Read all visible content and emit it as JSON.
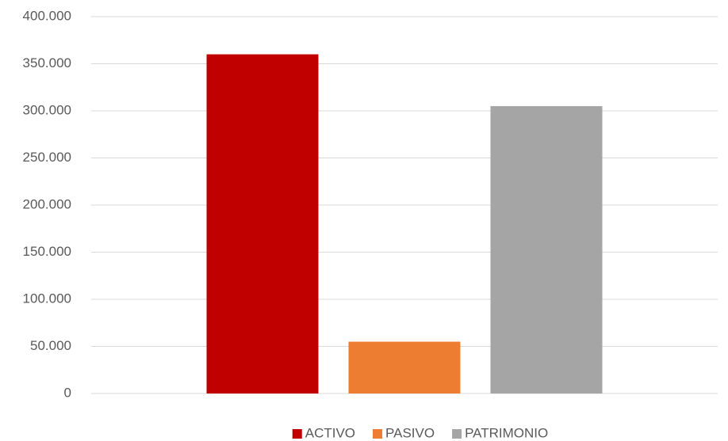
{
  "chart_data": {
    "type": "bar",
    "categories": [
      null
    ],
    "series": [
      {
        "name": "ACTIVO",
        "color": "#c00000",
        "values": [
          360000
        ]
      },
      {
        "name": "PASIVO",
        "color": "#ed7d31",
        "values": [
          55000
        ]
      },
      {
        "name": "PATRIMONIO",
        "color": "#a5a5a5",
        "values": [
          305000
        ]
      }
    ],
    "ylim": [
      0,
      400000
    ],
    "yticks": [
      0,
      {
        "value": 50000,
        "label": "50.000"
      },
      {
        "value": 100000,
        "label": "100.000"
      },
      {
        "value": 150000,
        "label": "150.000"
      },
      {
        "value": 200000,
        "label": "200.000"
      },
      {
        "value": 250000,
        "label": "250.000"
      },
      {
        "value": 300000,
        "label": "300.000"
      },
      {
        "value": 350000,
        "label": "350.000"
      },
      {
        "value": 400000,
        "label": "400.000"
      }
    ],
    "grid": true,
    "legend": "bottom"
  }
}
